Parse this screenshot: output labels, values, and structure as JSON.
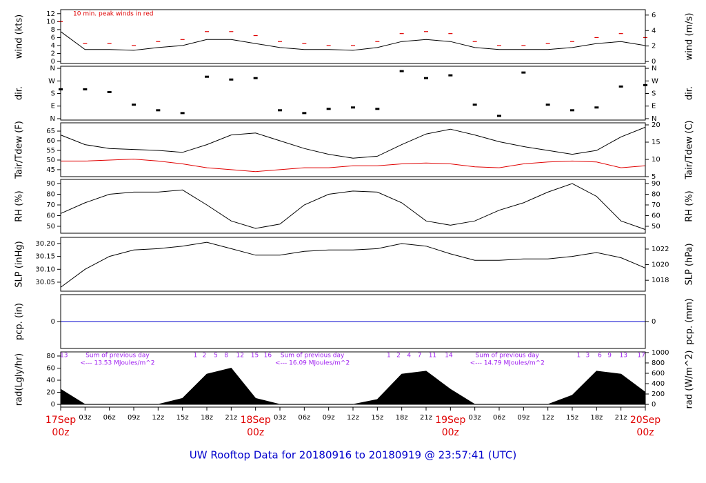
{
  "title": "UW Rooftop Data for 20180916  to  20180919 @ 23:57:41  (UTC)",
  "chart_data": [
    {
      "type": "line",
      "ylabel": "wind (kts)",
      "y2label": "wind (m/s)",
      "annotation": "10 min. peak winds in red",
      "ylim": [
        -0.5,
        13
      ],
      "yticks": [
        0,
        2,
        4,
        6,
        8,
        10,
        12
      ],
      "y2lim": [
        -0.26,
        6.7
      ],
      "y2ticks": [
        0,
        2,
        4,
        6
      ],
      "x": [
        0,
        3,
        6,
        9,
        12,
        15,
        18,
        21,
        24,
        27,
        30,
        33,
        36,
        39,
        42,
        45,
        48,
        51,
        54,
        57,
        60,
        63,
        66,
        69,
        72
      ],
      "series": [
        {
          "name": "wind",
          "style": "line",
          "color": "#000000",
          "values": [
            7.5,
            3,
            3,
            2.8,
            3.5,
            4,
            5.5,
            5.5,
            4.5,
            3.5,
            3,
            3,
            2.8,
            3.5,
            5,
            5.5,
            5,
            3.5,
            3,
            3,
            3,
            3.5,
            4.5,
            5,
            4
          ]
        },
        {
          "name": "peak",
          "style": "dash",
          "color": "#e00000",
          "values": [
            10,
            4.5,
            4.5,
            4,
            5,
            5.5,
            7.5,
            7.5,
            6.5,
            5,
            4.5,
            4,
            4,
            5,
            7,
            7.5,
            7,
            5,
            4,
            4,
            4.5,
            5,
            6,
            7,
            6
          ]
        }
      ]
    },
    {
      "type": "scatter",
      "ylabel": "dir.",
      "y2label": "dir.",
      "ylim": [
        -10,
        375
      ],
      "yticks": [
        {
          "value": 0,
          "label": "N"
        },
        {
          "value": 90,
          "label": "E"
        },
        {
          "value": 180,
          "label": "S"
        },
        {
          "value": 270,
          "label": "W"
        },
        {
          "value": 360,
          "label": "N"
        }
      ],
      "y2lim": [
        -10,
        375
      ],
      "y2ticks": [
        {
          "value": 0,
          "label": "N"
        },
        {
          "value": 90,
          "label": "E"
        },
        {
          "value": 180,
          "label": "S"
        },
        {
          "value": 270,
          "label": "W"
        },
        {
          "value": 360,
          "label": "N"
        }
      ],
      "x": [
        0,
        3,
        6,
        9,
        12,
        15,
        18,
        21,
        24,
        27,
        30,
        33,
        36,
        39,
        42,
        45,
        48,
        51,
        54,
        57,
        60,
        63,
        66,
        69,
        72
      ],
      "series": [
        {
          "name": "direction",
          "style": "points",
          "color": "#000000",
          "values": [
            210,
            210,
            190,
            100,
            60,
            40,
            300,
            280,
            290,
            60,
            40,
            70,
            80,
            70,
            340,
            290,
            310,
            100,
            20,
            330,
            100,
            60,
            80,
            230,
            240
          ]
        }
      ]
    },
    {
      "type": "line",
      "ylabel": "Tair/Tdew (F)",
      "y2label": "Tair/Tdew (C)",
      "ylim": [
        41.4,
        69.3
      ],
      "yticks": [
        45,
        50,
        55,
        60,
        65
      ],
      "y2lim": [
        5,
        20.6
      ],
      "y2ticks": [
        5,
        10,
        15,
        20
      ],
      "x": [
        0,
        3,
        6,
        9,
        12,
        15,
        18,
        21,
        24,
        27,
        30,
        33,
        36,
        39,
        42,
        45,
        48,
        51,
        54,
        57,
        60,
        63,
        66,
        69,
        72
      ],
      "series": [
        {
          "name": "Tair",
          "style": "line",
          "color": "#000000",
          "values": [
            63,
            58,
            56,
            55.5,
            55,
            54,
            58,
            63,
            64,
            60,
            56,
            53,
            51,
            52,
            58,
            63.5,
            66,
            63,
            59.5,
            57,
            55,
            53,
            55,
            62,
            67
          ]
        },
        {
          "name": "Tdew",
          "style": "line",
          "color": "#e00000",
          "values": [
            49.5,
            49.5,
            50,
            50.5,
            49.5,
            48,
            46,
            45,
            44,
            45,
            46,
            46,
            47,
            47,
            48,
            48.5,
            48,
            46.5,
            46,
            48,
            49,
            49.5,
            49,
            46,
            47
          ]
        }
      ]
    },
    {
      "type": "line",
      "ylabel": "RH (%)",
      "y2label": "RH (%)",
      "ylim": [
        43.5,
        93.9
      ],
      "yticks": [
        50,
        60,
        70,
        80,
        90
      ],
      "y2lim": [
        43.5,
        93.9
      ],
      "y2ticks": [
        50,
        60,
        70,
        80,
        90
      ],
      "x": [
        0,
        3,
        6,
        9,
        12,
        15,
        18,
        21,
        24,
        27,
        30,
        33,
        36,
        39,
        42,
        45,
        48,
        51,
        54,
        57,
        60,
        63,
        66,
        69,
        72
      ],
      "series": [
        {
          "name": "RH",
          "style": "line",
          "color": "#000000",
          "values": [
            62,
            72,
            80,
            82,
            82,
            84,
            70,
            55,
            48,
            52,
            70,
            80,
            83,
            82,
            72,
            55,
            51,
            55,
            65,
            72,
            82,
            90,
            78,
            55,
            47
          ]
        }
      ]
    },
    {
      "type": "line",
      "ylabel": "SLP (inHg)",
      "y2label": "SLP (hPa)",
      "ylim": [
        30.015,
        30.224
      ],
      "yticks": [
        {
          "value": 30.05,
          "label": "30.05"
        },
        {
          "value": 30.1,
          "label": "30.10"
        },
        {
          "value": 30.15,
          "label": "30.15"
        },
        {
          "value": 30.2,
          "label": "30.20"
        }
      ],
      "y2lim": [
        1016.6,
        1023.5
      ],
      "y2ticks": [
        1018,
        1020,
        1022
      ],
      "x": [
        0,
        3,
        6,
        9,
        12,
        15,
        18,
        21,
        24,
        27,
        30,
        33,
        36,
        39,
        42,
        45,
        48,
        51,
        54,
        57,
        60,
        63,
        66,
        69,
        72
      ],
      "series": [
        {
          "name": "SLP",
          "style": "line",
          "color": "#000000",
          "values": [
            30.03,
            30.1,
            30.15,
            30.175,
            30.18,
            30.19,
            30.205,
            30.18,
            30.155,
            30.155,
            30.17,
            30.175,
            30.175,
            30.18,
            30.2,
            30.19,
            30.16,
            30.135,
            30.135,
            30.14,
            30.14,
            30.15,
            30.165,
            30.145,
            30.105
          ]
        }
      ]
    },
    {
      "type": "line",
      "ylabel": "pcp. (in)",
      "y2label": "pcp. (mm)",
      "ylim": [
        -1,
        1
      ],
      "yticks": [
        0
      ],
      "y2lim": [
        -1,
        1
      ],
      "y2ticks": [
        0
      ],
      "x": [
        0,
        3,
        6,
        9,
        12,
        15,
        18,
        21,
        24,
        27,
        30,
        33,
        36,
        39,
        42,
        45,
        48,
        51,
        54,
        57,
        60,
        63,
        66,
        69,
        72
      ],
      "series": [
        {
          "name": "pcp",
          "style": "line",
          "color": "#0000cc",
          "values": [
            0,
            0,
            0,
            0,
            0,
            0,
            0,
            0,
            0,
            0,
            0,
            0,
            0,
            0,
            0,
            0,
            0,
            0,
            0,
            0,
            0,
            0,
            0,
            0,
            0
          ]
        }
      ]
    },
    {
      "type": "area",
      "ylabel": "rad(Lgly/hr)",
      "y2label": "rad (W/m^2)",
      "ylim": [
        -4.5,
        86.8
      ],
      "yticks": [
        0,
        20,
        40,
        60,
        80
      ],
      "y2lim": [
        -53,
        1013
      ],
      "y2ticks": [
        0,
        200,
        400,
        600,
        800,
        1000
      ],
      "x": [
        0,
        3,
        6,
        9,
        12,
        15,
        18,
        21,
        24,
        27,
        30,
        33,
        36,
        39,
        42,
        45,
        48,
        51,
        54,
        57,
        60,
        63,
        66,
        69,
        72
      ],
      "series": [
        {
          "name": "rad",
          "style": "area",
          "color": "#000000",
          "values": [
            25,
            0,
            0,
            0,
            0,
            10,
            50,
            60,
            10,
            0,
            0,
            0,
            0,
            8,
            50,
            55,
            25,
            0,
            0,
            0,
            0,
            15,
            55,
            50,
            20
          ]
        }
      ],
      "daily_sums": [
        {
          "label": "Sum of previous day",
          "total": "<--- 13.53 MJoules/m^2"
        },
        {
          "label": "Sum of previous day",
          "total": "<--- 16.09 MJoules/m^2"
        },
        {
          "label": "Sum of previous day",
          "total": "<--- 14.79 MJoules/m^2"
        }
      ],
      "hour_marks": [
        {
          "value": 0.4,
          "label": "13"
        },
        {
          "value": 16.6,
          "label": "1"
        },
        {
          "value": 17.7,
          "label": "2"
        },
        {
          "value": 19.1,
          "label": "5"
        },
        {
          "value": 20.4,
          "label": "8"
        },
        {
          "value": 22.1,
          "label": "12"
        },
        {
          "value": 23.9,
          "label": "15"
        },
        {
          "value": 25.5,
          "label": "16"
        },
        {
          "value": 40.4,
          "label": "1"
        },
        {
          "value": 41.6,
          "label": "2"
        },
        {
          "value": 42.9,
          "label": "4"
        },
        {
          "value": 44.2,
          "label": "7"
        },
        {
          "value": 45.8,
          "label": "11"
        },
        {
          "value": 47.8,
          "label": "14"
        },
        {
          "value": 63.8,
          "label": "1"
        },
        {
          "value": 64.9,
          "label": "3"
        },
        {
          "value": 66.4,
          "label": "6"
        },
        {
          "value": 67.6,
          "label": "9"
        },
        {
          "value": 69.3,
          "label": "13"
        },
        {
          "value": 71.5,
          "label": "17"
        }
      ],
      "xlim": [
        0,
        72
      ],
      "xticks": [
        {
          "value": 0,
          "label": "00z"
        },
        {
          "value": 3,
          "label": "03z"
        },
        {
          "value": 6,
          "label": "06z"
        },
        {
          "value": 9,
          "label": "09z"
        },
        {
          "value": 12,
          "label": "12z"
        },
        {
          "value": 15,
          "label": "15z"
        },
        {
          "value": 18,
          "label": "18z"
        },
        {
          "value": 21,
          "label": "21z"
        },
        {
          "value": 24,
          "label": "00z"
        },
        {
          "value": 27,
          "label": "03z"
        },
        {
          "value": 30,
          "label": "06z"
        },
        {
          "value": 33,
          "label": "09z"
        },
        {
          "value": 36,
          "label": "12z"
        },
        {
          "value": 39,
          "label": "15z"
        },
        {
          "value": 42,
          "label": "18z"
        },
        {
          "value": 45,
          "label": "21z"
        },
        {
          "value": 48,
          "label": "00z"
        },
        {
          "value": 51,
          "label": "03z"
        },
        {
          "value": 54,
          "label": "06z"
        },
        {
          "value": 57,
          "label": "09z"
        },
        {
          "value": 60,
          "label": "12z"
        },
        {
          "value": 63,
          "label": "15z"
        },
        {
          "value": 66,
          "label": "18z"
        },
        {
          "value": 69,
          "label": "21z"
        },
        {
          "value": 72,
          "label": "00z"
        }
      ],
      "date_labels": [
        {
          "value": 0,
          "label": "17Sep"
        },
        {
          "value": 24,
          "label": "18Sep"
        },
        {
          "value": 48,
          "label": "19Sep"
        },
        {
          "value": 72,
          "label": "20Sep"
        }
      ]
    }
  ]
}
